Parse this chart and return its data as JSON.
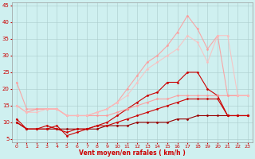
{
  "title": "",
  "xlabel": "Vent moyen/en rafales ( km/h )",
  "ylabel": "",
  "background_color": "#cff0f0",
  "grid_color": "#aacccc",
  "xlim": [
    -0.5,
    23.5
  ],
  "ylim": [
    4,
    46
  ],
  "yticks": [
    5,
    10,
    15,
    20,
    25,
    30,
    35,
    40,
    45
  ],
  "xticks": [
    0,
    1,
    2,
    3,
    4,
    5,
    6,
    7,
    8,
    9,
    10,
    11,
    12,
    13,
    14,
    15,
    16,
    17,
    18,
    19,
    20,
    21,
    22,
    23
  ],
  "series": [
    {
      "x": [
        0,
        1,
        2,
        3,
        4,
        5,
        6,
        7,
        8,
        9,
        10,
        11,
        12,
        13,
        14,
        15,
        16,
        17,
        18,
        19,
        20,
        21,
        22,
        23
      ],
      "y": [
        10,
        8,
        8,
        8,
        8,
        8,
        8,
        8,
        8,
        9,
        9,
        9,
        10,
        10,
        10,
        10,
        11,
        11,
        12,
        12,
        12,
        12,
        12,
        12
      ],
      "color": "#990000",
      "alpha": 1.0,
      "marker": "D",
      "markersize": 1.5,
      "linewidth": 0.8
    },
    {
      "x": [
        0,
        1,
        2,
        3,
        4,
        5,
        6,
        7,
        8,
        9,
        10,
        11,
        12,
        13,
        14,
        15,
        16,
        17,
        18,
        19,
        20,
        21,
        22,
        23
      ],
      "y": [
        10,
        8,
        8,
        9,
        8,
        7,
        8,
        8,
        9,
        9,
        10,
        11,
        12,
        13,
        14,
        15,
        16,
        17,
        17,
        17,
        17,
        12,
        12,
        12
      ],
      "color": "#cc0000",
      "alpha": 1.0,
      "marker": "D",
      "markersize": 1.5,
      "linewidth": 0.8
    },
    {
      "x": [
        0,
        1,
        2,
        3,
        4,
        5,
        6,
        7,
        8,
        9,
        10,
        11,
        12,
        13,
        14,
        15,
        16,
        17,
        18,
        19,
        20,
        21,
        22,
        23
      ],
      "y": [
        11,
        8,
        8,
        8,
        9,
        6,
        7,
        8,
        9,
        10,
        12,
        14,
        16,
        18,
        19,
        22,
        22,
        25,
        25,
        20,
        18,
        12,
        12,
        12
      ],
      "color": "#cc0000",
      "alpha": 1.0,
      "marker": "D",
      "markersize": 1.5,
      "linewidth": 0.8
    },
    {
      "x": [
        0,
        1,
        2,
        3,
        4,
        5,
        6,
        7,
        8,
        9,
        10,
        11,
        12,
        13,
        14,
        15,
        16,
        17,
        18,
        19,
        20,
        21,
        22,
        23
      ],
      "y": [
        15,
        13,
        14,
        14,
        14,
        12,
        12,
        12,
        12,
        12,
        13,
        14,
        15,
        16,
        17,
        17,
        18,
        18,
        18,
        18,
        18,
        18,
        18,
        18
      ],
      "color": "#ff9999",
      "alpha": 0.9,
      "marker": "D",
      "markersize": 1.5,
      "linewidth": 0.8
    },
    {
      "x": [
        0,
        1,
        2,
        3,
        4,
        5,
        6,
        7,
        8,
        9,
        10,
        11,
        12,
        13,
        14,
        15,
        16,
        17,
        18,
        19,
        20,
        21,
        22,
        23
      ],
      "y": [
        22,
        14,
        14,
        14,
        14,
        12,
        12,
        12,
        13,
        14,
        16,
        20,
        24,
        28,
        30,
        33,
        37,
        42,
        38,
        32,
        36,
        18,
        18,
        18
      ],
      "color": "#ff9999",
      "alpha": 0.85,
      "marker": "D",
      "markersize": 1.5,
      "linewidth": 0.8
    },
    {
      "x": [
        0,
        1,
        2,
        3,
        4,
        5,
        6,
        7,
        8,
        9,
        10,
        11,
        12,
        13,
        14,
        15,
        16,
        17,
        18,
        19,
        20,
        21,
        22,
        23
      ],
      "y": [
        15,
        13,
        13,
        14,
        14,
        12,
        12,
        12,
        13,
        14,
        16,
        18,
        22,
        26,
        28,
        30,
        32,
        36,
        34,
        28,
        36,
        36,
        18,
        18
      ],
      "color": "#ffbbbb",
      "alpha": 0.8,
      "marker": "D",
      "markersize": 1.5,
      "linewidth": 0.8
    }
  ]
}
